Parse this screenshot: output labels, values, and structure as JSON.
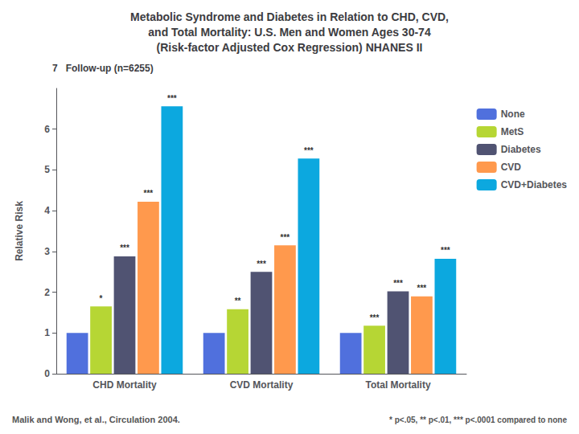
{
  "chart_data": {
    "type": "bar",
    "title": [
      "Metabolic Syndrome and Diabetes in Relation to CHD, CVD,",
      "and Total Mortality: U.S. Men and Women Ages 30-74",
      "(Risk-factor Adjusted Cox Regression) NHANES II"
    ],
    "subtitle": "7   Follow-up (n=6255)",
    "ylabel": "Relative Risk",
    "categories": [
      "CHD Mortality",
      "CVD Mortality",
      "Total Mortality"
    ],
    "series": [
      {
        "name": "None",
        "values": [
          1.0,
          1.0,
          1.0
        ]
      },
      {
        "name": "MetS",
        "values": [
          1.65,
          1.58,
          1.18
        ],
        "annotations": [
          "*",
          "**",
          "***"
        ]
      },
      {
        "name": "Diabetes",
        "values": [
          2.88,
          2.5,
          2.02
        ],
        "annotations": [
          "***",
          "***",
          "***"
        ]
      },
      {
        "name": "CVD",
        "values": [
          4.22,
          3.15,
          1.9
        ],
        "annotations": [
          "***",
          "***",
          "***"
        ]
      },
      {
        "name": "CVD+Diabetes",
        "values": [
          6.56,
          5.28,
          2.82
        ],
        "annotations": [
          "***",
          "***",
          "***"
        ]
      }
    ],
    "ylim": [
      0,
      7
    ],
    "yticks": [
      0,
      1,
      2,
      3,
      4,
      5,
      6
    ],
    "grid": false,
    "legend": "right",
    "data_labels": false,
    "footnotes": [
      "Malik and Wong, et al., Circulation 2004.",
      "* p<.05, ** p<.01, *** p<.0001 compared to none"
    ]
  }
}
